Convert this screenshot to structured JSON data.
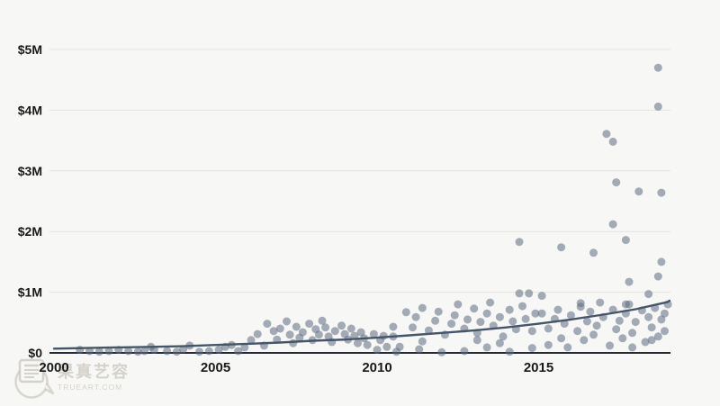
{
  "page": {
    "background": "#f7f7f5"
  },
  "watermark": {
    "chars": "果真艺容",
    "domain": "TRUEART.COM"
  },
  "chart_data": {
    "type": "scatter",
    "title": "",
    "xlabel": "",
    "ylabel": "",
    "point_unit": "USD millions",
    "x_ticks": [
      {
        "value": 2000,
        "label": "2000"
      },
      {
        "value": 2005,
        "label": "2005"
      },
      {
        "value": 2010,
        "label": "2010"
      },
      {
        "value": 2015,
        "label": "2015"
      }
    ],
    "y_ticks": [
      {
        "value": 0,
        "label": "$0"
      },
      {
        "value": 1,
        "label": "$1M"
      },
      {
        "value": 2,
        "label": "$2M"
      },
      {
        "value": 3,
        "label": "$3M"
      },
      {
        "value": 4,
        "label": "$4M"
      },
      {
        "value": 5,
        "label": "$5M"
      }
    ],
    "x_range": [
      2000,
      2019.2
    ],
    "y_range": [
      0,
      5.5
    ],
    "grid": true,
    "legend": "none",
    "point_color": "#5c6b7f",
    "point_opacity": 0.55,
    "trend_color": "#445669",
    "axis_color": "#262b33",
    "grid_color": "#e5e4e1",
    "label_color": "#1a1a1a",
    "points": [
      [
        2000.8,
        0.05
      ],
      [
        2001.1,
        0.03
      ],
      [
        2001.4,
        0.02
      ],
      [
        2001.7,
        0.03
      ],
      [
        2002.0,
        0.05
      ],
      [
        2002.3,
        0.03
      ],
      [
        2002.6,
        0.02
      ],
      [
        2002.8,
        0.03
      ],
      [
        2003.0,
        0.1
      ],
      [
        2003.1,
        0.05
      ],
      [
        2003.5,
        0.03
      ],
      [
        2003.8,
        0.02
      ],
      [
        2004.0,
        0.06
      ],
      [
        2004.2,
        0.12
      ],
      [
        2004.5,
        0.02
      ],
      [
        2004.8,
        0.03
      ],
      [
        2005.1,
        0.05
      ],
      [
        2005.3,
        0.1
      ],
      [
        2005.5,
        0.13
      ],
      [
        2005.7,
        0.03
      ],
      [
        2005.9,
        0.09
      ],
      [
        2006.1,
        0.21
      ],
      [
        2006.3,
        0.31
      ],
      [
        2006.5,
        0.12
      ],
      [
        2006.6,
        0.48
      ],
      [
        2006.8,
        0.36
      ],
      [
        2006.9,
        0.22
      ],
      [
        2007.0,
        0.4
      ],
      [
        2007.2,
        0.52
      ],
      [
        2007.3,
        0.3
      ],
      [
        2007.4,
        0.16
      ],
      [
        2007.5,
        0.43
      ],
      [
        2007.6,
        0.25
      ],
      [
        2007.7,
        0.34
      ],
      [
        2007.9,
        0.48
      ],
      [
        2008.0,
        0.21
      ],
      [
        2008.1,
        0.39
      ],
      [
        2008.2,
        0.3
      ],
      [
        2008.3,
        0.53
      ],
      [
        2008.4,
        0.42
      ],
      [
        2008.5,
        0.27
      ],
      [
        2008.6,
        0.18
      ],
      [
        2008.7,
        0.36
      ],
      [
        2008.9,
        0.45
      ],
      [
        2009.0,
        0.31
      ],
      [
        2009.1,
        0.22
      ],
      [
        2009.2,
        0.4
      ],
      [
        2009.3,
        0.28
      ],
      [
        2009.4,
        0.16
      ],
      [
        2009.5,
        0.34
      ],
      [
        2009.6,
        0.24
      ],
      [
        2009.7,
        0.13
      ],
      [
        2009.9,
        0.31
      ],
      [
        2010.0,
        0.05
      ],
      [
        2010.1,
        0.21
      ],
      [
        2010.2,
        0.28
      ],
      [
        2010.3,
        0.1
      ],
      [
        2010.5,
        0.43
      ],
      [
        2010.5,
        0.27
      ],
      [
        2010.6,
        0.02
      ],
      [
        2010.7,
        0.1
      ],
      [
        2010.9,
        0.67
      ],
      [
        2011.1,
        0.42
      ],
      [
        2011.2,
        0.59
      ],
      [
        2011.3,
        0.06
      ],
      [
        2011.4,
        0.74
      ],
      [
        2011.4,
        0.19
      ],
      [
        2011.6,
        0.37
      ],
      [
        2011.8,
        0.53
      ],
      [
        2011.9,
        0.68
      ],
      [
        2012.0,
        0.01
      ],
      [
        2012.1,
        0.3
      ],
      [
        2012.3,
        0.48
      ],
      [
        2012.4,
        0.62
      ],
      [
        2012.5,
        0.8
      ],
      [
        2012.7,
        0.4
      ],
      [
        2012.7,
        0.03
      ],
      [
        2012.8,
        0.55
      ],
      [
        2013.0,
        0.73
      ],
      [
        2013.1,
        0.33
      ],
      [
        2013.1,
        0.21
      ],
      [
        2013.2,
        0.51
      ],
      [
        2013.4,
        0.65
      ],
      [
        2013.4,
        0.09
      ],
      [
        2013.5,
        0.83
      ],
      [
        2013.6,
        0.45
      ],
      [
        2013.8,
        0.59
      ],
      [
        2013.8,
        0.16
      ],
      [
        2013.9,
        0.27
      ],
      [
        2014.1,
        0.71
      ],
      [
        2014.1,
        0.02
      ],
      [
        2014.2,
        0.52
      ],
      [
        2014.3,
        0.39
      ],
      [
        2014.4,
        1.83
      ],
      [
        2014.4,
        0.98
      ],
      [
        2014.5,
        0.77
      ],
      [
        2014.6,
        0.56
      ],
      [
        2014.7,
        0.98
      ],
      [
        2014.8,
        0.36
      ],
      [
        2014.8,
        0.08
      ],
      [
        2014.9,
        0.65
      ],
      [
        2015.1,
        0.94
      ],
      [
        2015.1,
        0.65
      ],
      [
        2015.3,
        0.4
      ],
      [
        2015.3,
        0.13
      ],
      [
        2015.5,
        0.56
      ],
      [
        2015.6,
        0.71
      ],
      [
        2015.7,
        0.24
      ],
      [
        2015.7,
        1.74
      ],
      [
        2015.8,
        0.48
      ],
      [
        2015.9,
        0.09
      ],
      [
        2016.0,
        0.62
      ],
      [
        2016.2,
        0.36
      ],
      [
        2016.3,
        0.76
      ],
      [
        2016.3,
        0.82
      ],
      [
        2016.4,
        0.21
      ],
      [
        2016.5,
        0.52
      ],
      [
        2016.6,
        0.68
      ],
      [
        2016.7,
        1.65
      ],
      [
        2016.7,
        0.3
      ],
      [
        2016.8,
        0.45
      ],
      [
        2016.9,
        0.83
      ],
      [
        2017.0,
        0.59
      ],
      [
        2017.1,
        3.61
      ],
      [
        2017.2,
        0.12
      ],
      [
        2017.3,
        0.71
      ],
      [
        2017.3,
        3.48
      ],
      [
        2017.3,
        2.12
      ],
      [
        2017.4,
        0.39
      ],
      [
        2017.4,
        2.81
      ],
      [
        2017.5,
        0.53
      ],
      [
        2017.6,
        0.24
      ],
      [
        2017.7,
        1.86
      ],
      [
        2017.7,
        0.65
      ],
      [
        2017.7,
        0.8
      ],
      [
        2017.8,
        1.17
      ],
      [
        2017.8,
        0.8
      ],
      [
        2017.9,
        0.33
      ],
      [
        2017.9,
        0.09
      ],
      [
        2018.0,
        0.51
      ],
      [
        2018.1,
        2.66
      ],
      [
        2018.2,
        0.7
      ],
      [
        2018.3,
        0.18
      ],
      [
        2018.4,
        0.59
      ],
      [
        2018.4,
        0.97
      ],
      [
        2018.5,
        0.42
      ],
      [
        2018.5,
        0.21
      ],
      [
        2018.6,
        0.74
      ],
      [
        2018.7,
        4.06
      ],
      [
        2018.7,
        1.26
      ],
      [
        2018.7,
        4.7
      ],
      [
        2018.7,
        0.27
      ],
      [
        2018.8,
        2.64
      ],
      [
        2018.8,
        1.5
      ],
      [
        2018.8,
        0.55
      ],
      [
        2018.9,
        0.65
      ],
      [
        2018.9,
        0.36
      ],
      [
        2019.0,
        0.8
      ]
    ],
    "trend": [
      [
        2000,
        0.07
      ],
      [
        2001,
        0.08
      ],
      [
        2002,
        0.09
      ],
      [
        2003,
        0.1
      ],
      [
        2004,
        0.11
      ],
      [
        2005,
        0.13
      ],
      [
        2006,
        0.15
      ],
      [
        2007,
        0.17
      ],
      [
        2008,
        0.2
      ],
      [
        2009,
        0.22
      ],
      [
        2010,
        0.25
      ],
      [
        2011,
        0.29
      ],
      [
        2012,
        0.33
      ],
      [
        2013,
        0.37
      ],
      [
        2014,
        0.42
      ],
      [
        2015,
        0.48
      ],
      [
        2016,
        0.55
      ],
      [
        2017,
        0.63
      ],
      [
        2018,
        0.72
      ],
      [
        2019,
        0.84
      ],
      [
        2019.05,
        0.86
      ]
    ]
  }
}
